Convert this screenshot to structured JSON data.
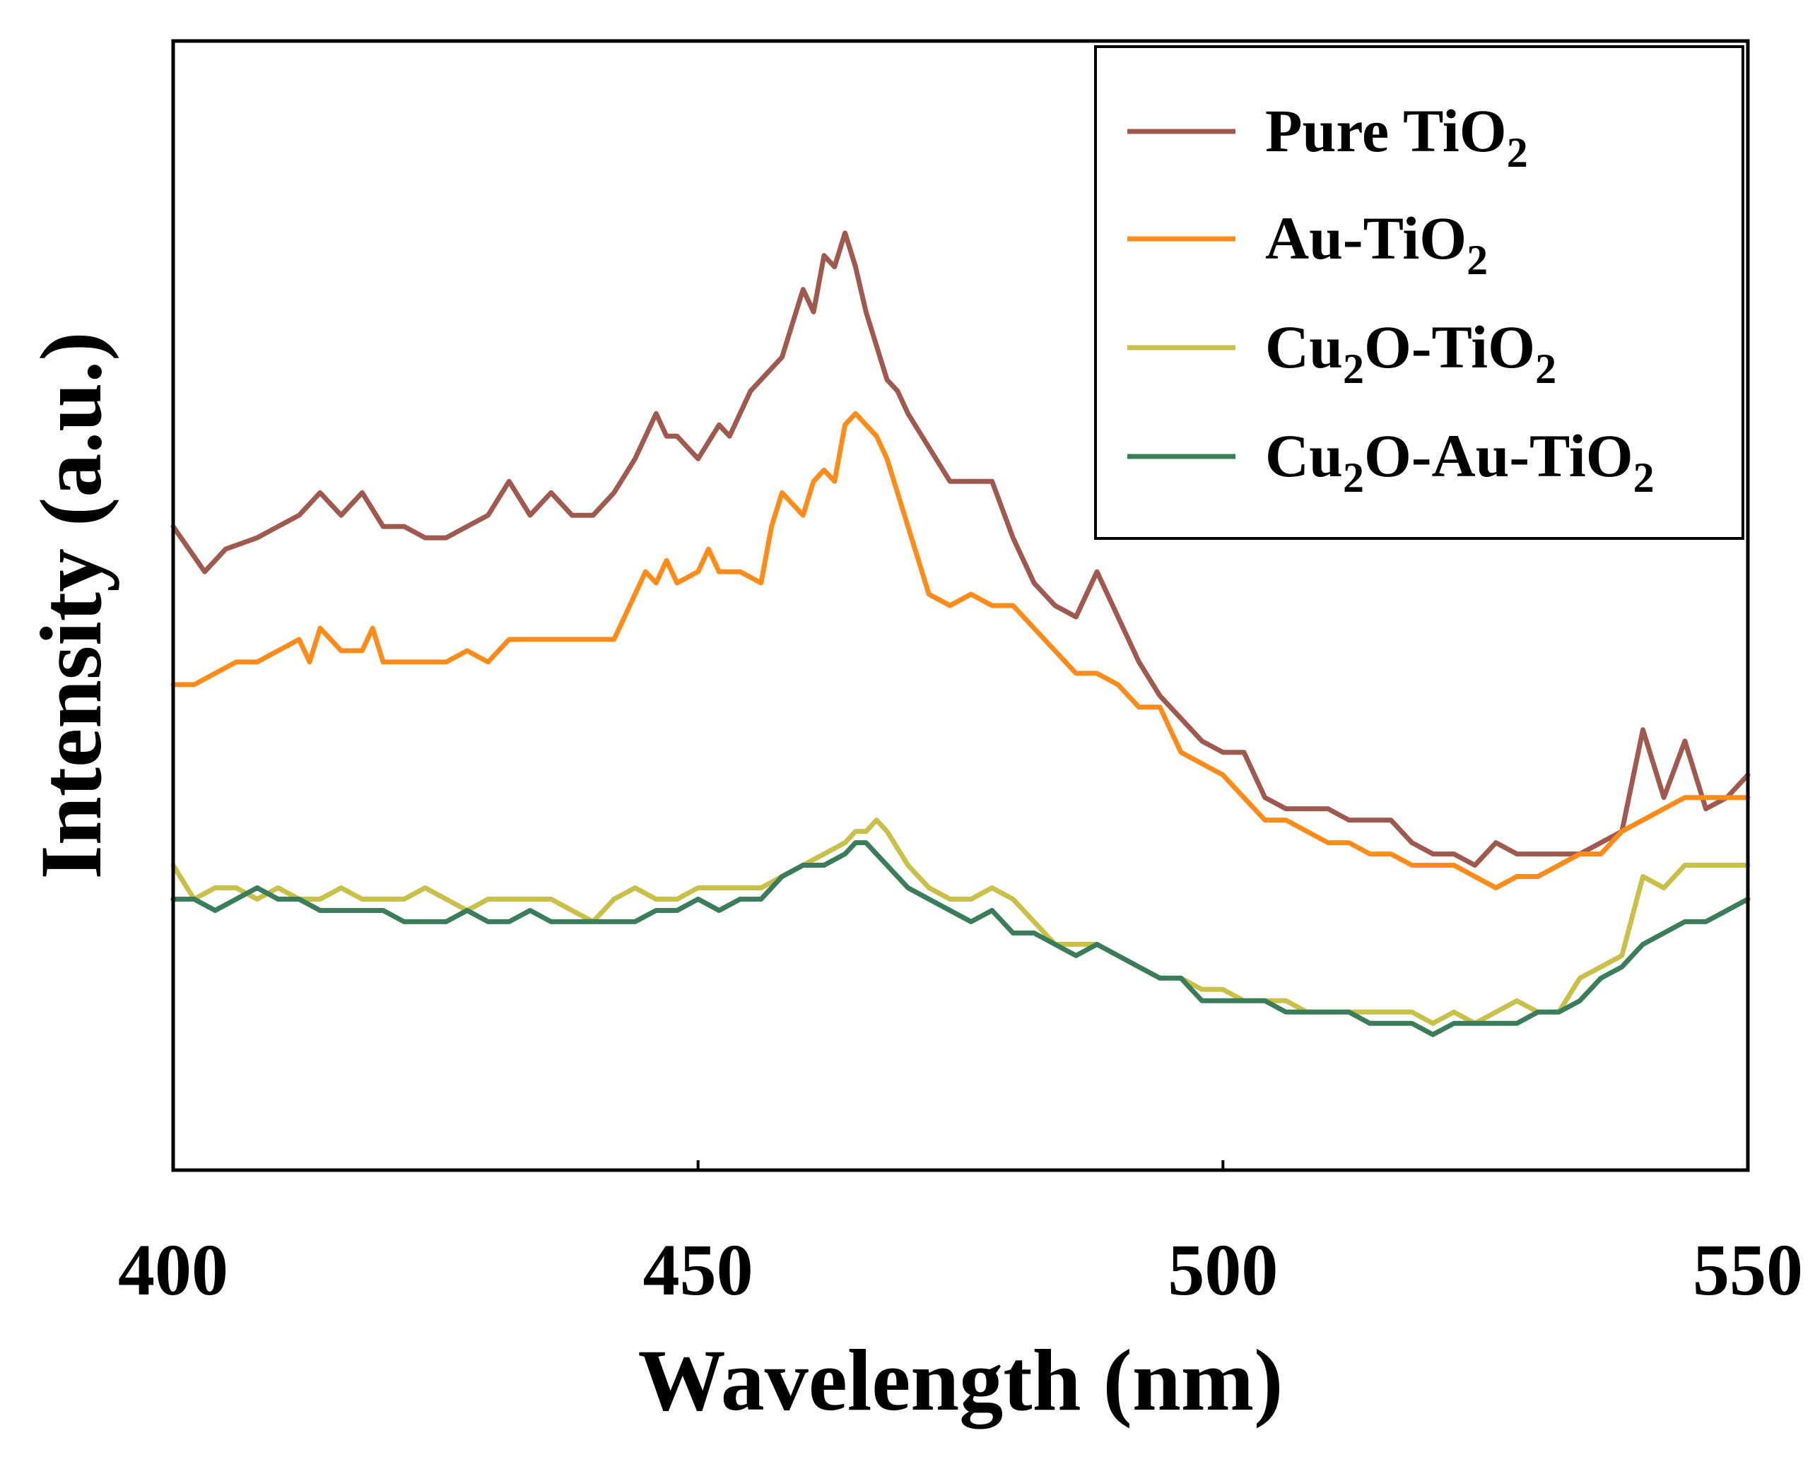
{
  "chart_data": {
    "type": "line",
    "title": "",
    "xlabel": "Wavelength (nm)",
    "ylabel": "Intensity (a.u.)",
    "xlim": [
      400,
      550
    ],
    "ylim": [
      0,
      100
    ],
    "x_ticks": [
      "400",
      "450",
      "500",
      "550"
    ],
    "y_ticks_shown": false,
    "grid": false,
    "legend_position": "top-right",
    "series": [
      {
        "name": "Pure TiO2",
        "label_main": "Pure TiO",
        "label_parts": [
          {
            "text": "Pure TiO",
            "sub": false
          },
          {
            "text": "2",
            "sub": true
          }
        ],
        "color": "#a0594e",
        "x": [
          400,
          403,
          405,
          408,
          410,
          412,
          414,
          416,
          418,
          420,
          422,
          424,
          426,
          428,
          430,
          432,
          434,
          436,
          438,
          440,
          442,
          444,
          446,
          447,
          448,
          450,
          452,
          453,
          455,
          456,
          458,
          460,
          461,
          462,
          463,
          464,
          465,
          466,
          467,
          468,
          469,
          470,
          472,
          474,
          476,
          478,
          480,
          482,
          484,
          486,
          488,
          490,
          492,
          494,
          496,
          498,
          500,
          502,
          504,
          506,
          508,
          510,
          512,
          514,
          516,
          518,
          520,
          522,
          524,
          526,
          528,
          530,
          532,
          534,
          536,
          538,
          540,
          542,
          544,
          546,
          548,
          550
        ],
        "y": [
          57,
          53,
          55,
          56,
          57,
          58,
          60,
          58,
          60,
          57,
          57,
          56,
          56,
          57,
          58,
          61,
          58,
          60,
          58,
          58,
          60,
          63,
          67,
          65,
          65,
          63,
          66,
          65,
          69,
          70,
          72,
          78,
          76,
          81,
          80,
          83,
          80,
          76,
          73,
          70,
          69,
          67,
          64,
          61,
          61,
          61,
          56,
          52,
          50,
          49,
          53,
          49,
          45,
          42,
          40,
          38,
          37,
          37,
          33,
          32,
          32,
          32,
          31,
          31,
          31,
          29,
          28,
          28,
          27,
          29,
          28,
          28,
          28,
          28,
          29,
          30,
          39,
          33,
          38,
          32,
          33,
          35
        ]
      },
      {
        "name": "Au-TiO2",
        "label_main": "Au-TiO",
        "label_parts": [
          {
            "text": "Au-TiO",
            "sub": false
          },
          {
            "text": "2",
            "sub": true
          }
        ],
        "color": "#ff8c1a",
        "x": [
          400,
          402,
          404,
          406,
          408,
          410,
          412,
          413,
          414,
          416,
          418,
          419,
          420,
          422,
          424,
          426,
          428,
          430,
          432,
          434,
          436,
          438,
          440,
          442,
          443,
          444,
          445,
          446,
          447,
          448,
          450,
          451,
          452,
          454,
          456,
          457,
          458,
          460,
          461,
          462,
          463,
          464,
          465,
          466,
          467,
          468,
          470,
          472,
          474,
          476,
          478,
          480,
          482,
          484,
          486,
          488,
          490,
          492,
          494,
          496,
          498,
          500,
          502,
          504,
          506,
          508,
          510,
          512,
          514,
          516,
          518,
          520,
          522,
          524,
          526,
          528,
          530,
          532,
          534,
          536,
          538,
          540,
          542,
          544,
          546,
          548,
          550
        ],
        "y": [
          43,
          43,
          44,
          45,
          45,
          46,
          47,
          45,
          48,
          46,
          46,
          48,
          45,
          45,
          45,
          45,
          46,
          45,
          47,
          47,
          47,
          47,
          47,
          47,
          49,
          51,
          53,
          52,
          54,
          52,
          53,
          55,
          53,
          53,
          52,
          57,
          60,
          58,
          61,
          62,
          61,
          66,
          67,
          66,
          65,
          63,
          57,
          51,
          50,
          51,
          50,
          50,
          48,
          46,
          44,
          44,
          43,
          41,
          41,
          37,
          36,
          35,
          33,
          31,
          31,
          30,
          29,
          29,
          28,
          28,
          27,
          27,
          27,
          26,
          25,
          26,
          26,
          27,
          28,
          28,
          30,
          31,
          32,
          33,
          33,
          33,
          33
        ]
      },
      {
        "name": "Cu2O-TiO2",
        "label_main": "Cu2O-TiO",
        "label_parts": [
          {
            "text": "Cu",
            "sub": false
          },
          {
            "text": "2",
            "sub": true
          },
          {
            "text": "O-TiO",
            "sub": false
          },
          {
            "text": "2",
            "sub": true
          }
        ],
        "color": "#c9c04a",
        "x": [
          400,
          402,
          404,
          406,
          408,
          410,
          412,
          414,
          416,
          418,
          420,
          422,
          424,
          426,
          428,
          430,
          432,
          434,
          436,
          438,
          440,
          442,
          444,
          446,
          448,
          450,
          452,
          454,
          456,
          458,
          460,
          462,
          464,
          465,
          466,
          467,
          468,
          470,
          472,
          474,
          476,
          478,
          480,
          482,
          484,
          486,
          488,
          490,
          492,
          494,
          496,
          498,
          500,
          502,
          504,
          506,
          508,
          510,
          512,
          514,
          516,
          518,
          520,
          522,
          524,
          526,
          528,
          530,
          532,
          534,
          536,
          538,
          540,
          542,
          544,
          546,
          548,
          550
        ],
        "y": [
          27,
          24,
          25,
          25,
          24,
          25,
          24,
          24,
          25,
          24,
          24,
          24,
          25,
          24,
          23,
          24,
          24,
          24,
          24,
          23,
          22,
          24,
          25,
          24,
          24,
          25,
          25,
          25,
          25,
          26,
          27,
          28,
          29,
          30,
          30,
          31,
          30,
          27,
          25,
          24,
          24,
          25,
          24,
          22,
          20,
          20,
          20,
          19,
          18,
          17,
          17,
          16,
          16,
          15,
          15,
          15,
          14,
          14,
          14,
          14,
          14,
          14,
          13,
          14,
          13,
          14,
          15,
          14,
          14,
          17,
          18,
          19,
          26,
          25,
          27,
          27,
          27,
          27
        ]
      },
      {
        "name": "Cu2O-Au-TiO2",
        "label_main": "Cu2O-Au-TiO",
        "label_parts": [
          {
            "text": "Cu",
            "sub": false
          },
          {
            "text": "2",
            "sub": true
          },
          {
            "text": "O-Au-TiO",
            "sub": false
          },
          {
            "text": "2",
            "sub": true
          }
        ],
        "color": "#3a7d5a",
        "x": [
          400,
          402,
          404,
          406,
          408,
          410,
          412,
          414,
          416,
          418,
          420,
          422,
          424,
          426,
          428,
          430,
          432,
          434,
          436,
          438,
          440,
          442,
          444,
          446,
          448,
          450,
          452,
          454,
          456,
          458,
          460,
          462,
          464,
          465,
          466,
          467,
          468,
          470,
          472,
          474,
          476,
          478,
          480,
          482,
          484,
          486,
          488,
          490,
          492,
          494,
          496,
          498,
          500,
          502,
          504,
          506,
          508,
          510,
          512,
          514,
          516,
          518,
          520,
          522,
          524,
          526,
          528,
          530,
          532,
          534,
          536,
          538,
          540,
          542,
          544,
          546,
          548,
          550
        ],
        "y": [
          24,
          24,
          23,
          24,
          25,
          24,
          24,
          23,
          23,
          23,
          23,
          22,
          22,
          22,
          23,
          22,
          22,
          23,
          22,
          22,
          22,
          22,
          22,
          23,
          23,
          24,
          23,
          24,
          24,
          26,
          27,
          27,
          28,
          29,
          29,
          28,
          27,
          25,
          24,
          23,
          22,
          23,
          21,
          21,
          20,
          19,
          20,
          19,
          18,
          17,
          17,
          15,
          15,
          15,
          15,
          14,
          14,
          14,
          14,
          13,
          13,
          13,
          12,
          13,
          13,
          13,
          13,
          14,
          14,
          15,
          17,
          18,
          20,
          21,
          22,
          22,
          23,
          24
        ]
      }
    ]
  }
}
